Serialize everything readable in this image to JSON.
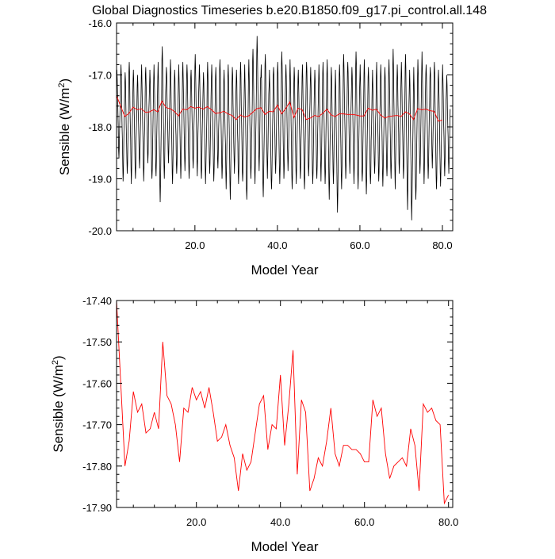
{
  "figure": {
    "title": "Global Diagnostics Timeseries b.e20.B1850.f09_g17.pi_control.all.148"
  },
  "chart_data": [
    {
      "type": "line",
      "title": "Global Diagnostics Timeseries b.e20.B1850.f09_g17.pi_control.all.148",
      "xlabel": "Model Year",
      "ylabel": "Sensible (W/m",
      "ylabel_sup": "2",
      "ylabel_tail": ")",
      "xlim": [
        1,
        82.5
      ],
      "ylim": [
        -20.0,
        -16.0
      ],
      "xticks": [
        20,
        40,
        60,
        80
      ],
      "xtick_labels": [
        "20.0",
        "40.0",
        "60.0",
        "80.0"
      ],
      "yticks": [
        -16.0,
        -17.0,
        -18.0,
        -19.0,
        -20.0
      ],
      "ytick_labels": [
        "-16.0",
        "-17.0",
        "-18.0",
        "-19.0",
        "-20.0"
      ],
      "grid": false,
      "series": [
        {
          "kind": "monthly",
          "color": "#000000",
          "x_start": 1.0,
          "x_step": 0.0833,
          "annual_max": [
            -16.9,
            -16.8,
            -16.95,
            -16.75,
            -16.9,
            -17.0,
            -16.8,
            -16.85,
            -16.9,
            -16.8,
            -16.75,
            -16.45,
            -16.85,
            -16.7,
            -16.9,
            -16.8,
            -16.75,
            -16.8,
            -16.9,
            -16.6,
            -16.8,
            -16.95,
            -16.75,
            -16.8,
            -16.85,
            -16.7,
            -16.9,
            -16.8,
            -16.85,
            -16.9,
            -16.75,
            -16.8,
            -16.7,
            -16.5,
            -16.25,
            -16.8,
            -16.6,
            -16.9,
            -16.85,
            -16.75,
            -16.55,
            -16.8,
            -16.7,
            -16.85,
            -16.9,
            -16.8,
            -16.75,
            -16.85,
            -16.9,
            -16.8,
            -16.75,
            -16.7,
            -16.85,
            -16.9,
            -16.8,
            -16.6,
            -16.75,
            -16.85,
            -16.55,
            -16.8,
            -16.7,
            -16.85,
            -16.9,
            -16.75,
            -16.8,
            -16.85,
            -16.7,
            -16.5,
            -16.8,
            -16.75,
            -16.6,
            -16.9,
            -16.85,
            -16.7,
            -16.55,
            -16.8,
            -16.85,
            -16.75,
            -16.9,
            -16.8,
            -17.0
          ],
          "annual_min": [
            -18.6,
            -19.05,
            -18.9,
            -19.1,
            -19.0,
            -18.8,
            -19.05,
            -18.7,
            -19.0,
            -18.95,
            -19.45,
            -19.0,
            -18.7,
            -19.1,
            -18.9,
            -19.0,
            -18.85,
            -19.0,
            -18.8,
            -18.95,
            -19.0,
            -19.1,
            -18.9,
            -19.05,
            -18.8,
            -19.0,
            -19.2,
            -19.4,
            -18.9,
            -19.1,
            -19.05,
            -19.4,
            -19.0,
            -19.1,
            -18.85,
            -19.35,
            -19.0,
            -19.2,
            -18.9,
            -19.1,
            -19.0,
            -18.85,
            -19.2,
            -19.1,
            -19.0,
            -19.2,
            -18.95,
            -19.1,
            -19.0,
            -19.05,
            -19.1,
            -19.4,
            -19.1,
            -19.65,
            -19.2,
            -19.0,
            -18.9,
            -19.1,
            -19.2,
            -19.05,
            -19.3,
            -19.1,
            -18.9,
            -19.05,
            -19.15,
            -18.95,
            -19.0,
            -19.2,
            -18.9,
            -19.0,
            -19.6,
            -19.8,
            -19.4,
            -18.9,
            -19.1,
            -19.0,
            -18.8,
            -19.2,
            -19.15,
            -18.95,
            -18.9
          ]
        },
        {
          "kind": "annual",
          "color": "#ff0000",
          "x_start": 1.0,
          "x_step": 1.0,
          "values": [
            -17.4,
            -17.6,
            -17.8,
            -17.74,
            -17.62,
            -17.67,
            -17.65,
            -17.72,
            -17.71,
            -17.67,
            -17.71,
            -17.5,
            -17.63,
            -17.65,
            -17.7,
            -17.79,
            -17.66,
            -17.67,
            -17.61,
            -17.64,
            -17.62,
            -17.66,
            -17.61,
            -17.67,
            -17.74,
            -17.73,
            -17.7,
            -17.75,
            -17.78,
            -17.86,
            -17.77,
            -17.81,
            -17.79,
            -17.72,
            -17.65,
            -17.63,
            -17.76,
            -17.7,
            -17.71,
            -17.58,
            -17.75,
            -17.65,
            -17.52,
            -17.82,
            -17.64,
            -17.67,
            -17.86,
            -17.83,
            -17.78,
            -17.8,
            -17.74,
            -17.66,
            -17.77,
            -17.8,
            -17.75,
            -17.75,
            -17.76,
            -17.76,
            -17.77,
            -17.79,
            -17.79,
            -17.64,
            -17.68,
            -17.66,
            -17.77,
            -17.83,
            -17.8,
            -17.79,
            -17.78,
            -17.8,
            -17.71,
            -17.75,
            -17.86,
            -17.65,
            -17.67,
            -17.66,
            -17.69,
            -17.7,
            -17.89,
            -17.87
          ]
        }
      ]
    },
    {
      "type": "line",
      "title": "",
      "xlabel": "Model Year",
      "ylabel": "Sensible (W/m",
      "ylabel_sup": "2",
      "ylabel_tail": ")",
      "xlim": [
        1,
        81
      ],
      "ylim": [
        -17.9,
        -17.4
      ],
      "xticks": [
        20,
        40,
        60,
        80
      ],
      "xtick_labels": [
        "20.0",
        "40.0",
        "60.0",
        "80.0"
      ],
      "yticks": [
        -17.4,
        -17.5,
        -17.6,
        -17.7,
        -17.8,
        -17.9
      ],
      "ytick_labels": [
        "-17.40",
        "-17.50",
        "-17.60",
        "-17.70",
        "-17.80",
        "-17.90"
      ],
      "grid": false,
      "series": [
        {
          "kind": "annual",
          "color": "#ff0000",
          "x_start": 1.0,
          "x_step": 1.0,
          "values": [
            -17.4,
            -17.6,
            -17.8,
            -17.74,
            -17.62,
            -17.67,
            -17.65,
            -17.72,
            -17.71,
            -17.67,
            -17.71,
            -17.5,
            -17.63,
            -17.65,
            -17.7,
            -17.79,
            -17.66,
            -17.67,
            -17.61,
            -17.64,
            -17.62,
            -17.66,
            -17.61,
            -17.67,
            -17.74,
            -17.73,
            -17.7,
            -17.75,
            -17.78,
            -17.86,
            -17.77,
            -17.81,
            -17.79,
            -17.72,
            -17.65,
            -17.63,
            -17.76,
            -17.7,
            -17.71,
            -17.58,
            -17.75,
            -17.65,
            -17.52,
            -17.82,
            -17.64,
            -17.67,
            -17.86,
            -17.83,
            -17.78,
            -17.8,
            -17.74,
            -17.66,
            -17.77,
            -17.8,
            -17.75,
            -17.75,
            -17.76,
            -17.76,
            -17.77,
            -17.79,
            -17.79,
            -17.64,
            -17.68,
            -17.66,
            -17.77,
            -17.83,
            -17.8,
            -17.79,
            -17.78,
            -17.8,
            -17.71,
            -17.75,
            -17.86,
            -17.65,
            -17.67,
            -17.66,
            -17.69,
            -17.7,
            -17.89,
            -17.87
          ]
        }
      ]
    }
  ]
}
